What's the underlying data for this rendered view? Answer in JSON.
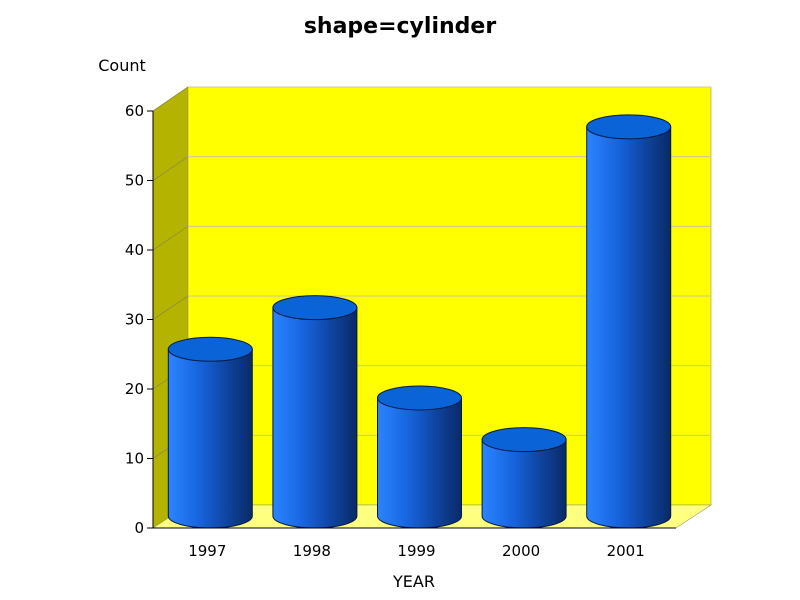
{
  "chart_data": {
    "type": "bar",
    "shape": "cylinder",
    "title": "shape=cylinder",
    "xlabel": "YEAR",
    "ylabel": "Count",
    "categories": [
      "1997",
      "1998",
      "1999",
      "2000",
      "2001"
    ],
    "values": [
      26,
      32,
      19,
      13,
      58
    ],
    "ylim": [
      0,
      60
    ],
    "yticks": [
      0,
      10,
      20,
      30,
      40,
      50,
      60
    ],
    "grid": true,
    "legend": "none",
    "colors": {
      "back_wall": "#ffff00",
      "side_wall": "#b3b300",
      "floor": "#ffff80",
      "bar_light": "#2b84ff",
      "bar_dark": "#0a2a66",
      "bar_top": "#0b63d8",
      "gridline": "#c8c8a0"
    }
  }
}
